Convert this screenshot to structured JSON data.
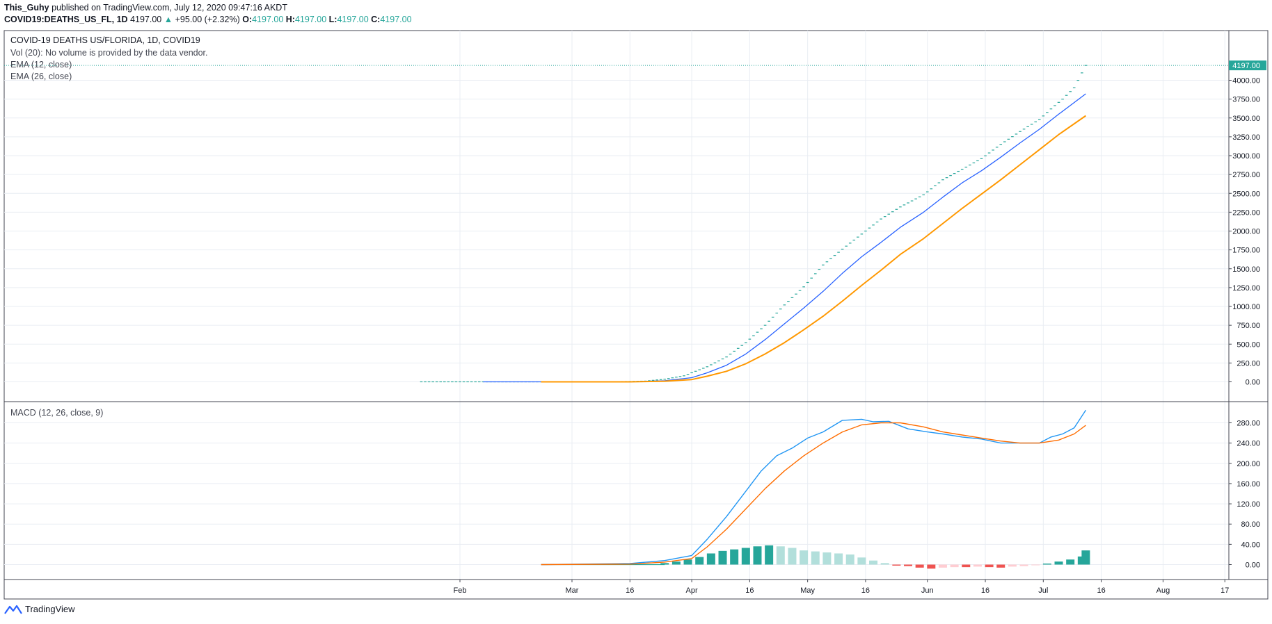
{
  "header": {
    "author": "This_Guhy",
    "published_text": "published on TradingView.com, July 12, 2020 09:47:16 AKDT",
    "symbol": "COVID19:DEATHS_US_FL, 1D",
    "last": "4197.00",
    "change": "+95.00 (+2.32%)",
    "o_label": "O:",
    "o_value": "4197.00",
    "h_label": "H:",
    "h_value": "4197.00",
    "l_label": "L:",
    "l_value": "4197.00",
    "c_label": "C:",
    "c_value": "4197.00"
  },
  "legend": {
    "title": "COVID-19 DEATHS US/FLORIDA, 1D, COVID19",
    "vol": "Vol (20): No volume is provided by the data vendor.",
    "ema12": "EMA (12, close)",
    "ema26": "EMA (26, close)",
    "macd": "MACD (12, 26, close, 9)"
  },
  "footer": {
    "brand": "TradingView",
    "logo_icon": "tradingview-logo-icon"
  },
  "colors": {
    "price_tick": "#26a69a",
    "ema12": "#2962ff",
    "ema26": "#ff9800",
    "macd_line": "#2196f3",
    "signal_line": "#ff6d00",
    "hist_up_strong": "#26a69a",
    "hist_up_weak": "#b2dfdb",
    "hist_down_strong": "#ef5350",
    "hist_down_weak": "#ffcdd2",
    "last_price_label": "#26a69a"
  },
  "chart_data": [
    {
      "type": "line",
      "title": "COVID-19 DEATHS US/FLORIDA, 1D, COVID19",
      "x_axis": {
        "ticks": [
          "Feb",
          "Mar",
          "16",
          "Apr",
          "16",
          "May",
          "16",
          "Jun",
          "16",
          "Jul",
          "16",
          "Aug",
          "17"
        ],
        "tick_dates": [
          "2020-02-01",
          "2020-03-01",
          "2020-03-16",
          "2020-04-01",
          "2020-04-16",
          "2020-05-01",
          "2020-05-16",
          "2020-06-01",
          "2020-06-16",
          "2020-07-01",
          "2020-07-16",
          "2020-08-01",
          "2020-08-17"
        ]
      },
      "y_axis": {
        "ylim": [
          -200,
          4300
        ],
        "ticks": [
          "0.00",
          "250.00",
          "500.00",
          "750.00",
          "1000.00",
          "1250.00",
          "1500.00",
          "1750.00",
          "2000.00",
          "2250.00",
          "2500.00",
          "2750.00",
          "3000.00",
          "3250.00",
          "3500.00",
          "3750.00",
          "4000.00"
        ],
        "tick_values": [
          0,
          250,
          500,
          750,
          1000,
          1250,
          1500,
          1750,
          2000,
          2250,
          2500,
          2750,
          3000,
          3250,
          3500,
          3750,
          4000
        ],
        "last_price_label": "4197.00",
        "last_price_value": 4197
      },
      "grid": true,
      "series": [
        {
          "kind": "price",
          "x": [
            "2020-01-22",
            "2020-02-07",
            "2020-03-01",
            "2020-03-10",
            "2020-03-16",
            "2020-03-20",
            "2020-03-25",
            "2020-03-30",
            "2020-04-01",
            "2020-04-05",
            "2020-04-10",
            "2020-04-15",
            "2020-04-20",
            "2020-04-25",
            "2020-04-30",
            "2020-05-05",
            "2020-05-10",
            "2020-05-15",
            "2020-05-20",
            "2020-05-25",
            "2020-05-31",
            "2020-06-05",
            "2020-06-10",
            "2020-06-15",
            "2020-06-20",
            "2020-06-25",
            "2020-06-30",
            "2020-07-03",
            "2020-07-06",
            "2020-07-09",
            "2020-07-12"
          ],
          "values": [
            0,
            0,
            0,
            2,
            5,
            10,
            35,
            80,
            120,
            200,
            330,
            520,
            750,
            1020,
            1260,
            1550,
            1760,
            1960,
            2160,
            2320,
            2480,
            2680,
            2820,
            2960,
            3150,
            3320,
            3480,
            3620,
            3750,
            3900,
            4197
          ]
        },
        {
          "name": "EMA (12, close)",
          "x": [
            "2020-02-07",
            "2020-03-01",
            "2020-03-16",
            "2020-03-25",
            "2020-04-01",
            "2020-04-05",
            "2020-04-10",
            "2020-04-15",
            "2020-04-20",
            "2020-04-25",
            "2020-04-30",
            "2020-05-05",
            "2020-05-10",
            "2020-05-15",
            "2020-05-20",
            "2020-05-25",
            "2020-05-31",
            "2020-06-05",
            "2020-06-10",
            "2020-06-15",
            "2020-06-20",
            "2020-06-25",
            "2020-06-30",
            "2020-07-05",
            "2020-07-12"
          ],
          "values": [
            0,
            0,
            0,
            15,
            55,
            120,
            220,
            370,
            560,
            770,
            980,
            1200,
            1440,
            1660,
            1850,
            2050,
            2250,
            2450,
            2640,
            2800,
            2980,
            3170,
            3350,
            3550,
            3820
          ]
        },
        {
          "name": "EMA (26, close)",
          "x": [
            "2020-02-22",
            "2020-03-01",
            "2020-03-16",
            "2020-03-25",
            "2020-04-01",
            "2020-04-05",
            "2020-04-10",
            "2020-04-15",
            "2020-04-20",
            "2020-04-25",
            "2020-04-30",
            "2020-05-05",
            "2020-05-10",
            "2020-05-15",
            "2020-05-20",
            "2020-05-25",
            "2020-05-31",
            "2020-06-05",
            "2020-06-10",
            "2020-06-15",
            "2020-06-20",
            "2020-06-25",
            "2020-06-30",
            "2020-07-05",
            "2020-07-12"
          ],
          "values": [
            0,
            0,
            0,
            8,
            30,
            75,
            140,
            240,
            370,
            520,
            690,
            870,
            1070,
            1280,
            1480,
            1690,
            1900,
            2100,
            2300,
            2490,
            2680,
            2880,
            3080,
            3280,
            3530
          ]
        }
      ]
    },
    {
      "type": "line",
      "title": "MACD (12, 26, close, 9)",
      "y_axis": {
        "ylim": [
          -20,
          320
        ],
        "ticks": [
          "0.00",
          "40.00",
          "80.00",
          "120.00",
          "160.00",
          "200.00",
          "240.00",
          "280.00"
        ],
        "tick_values": [
          0,
          40,
          80,
          120,
          160,
          200,
          240,
          280
        ]
      },
      "series": [
        {
          "name": "MACD",
          "x": [
            "2020-02-22",
            "2020-03-16",
            "2020-03-25",
            "2020-04-01",
            "2020-04-05",
            "2020-04-10",
            "2020-04-15",
            "2020-04-19",
            "2020-04-23",
            "2020-04-27",
            "2020-05-01",
            "2020-05-05",
            "2020-05-10",
            "2020-05-15",
            "2020-05-18",
            "2020-05-22",
            "2020-05-27",
            "2020-06-01",
            "2020-06-05",
            "2020-06-10",
            "2020-06-15",
            "2020-06-20",
            "2020-06-25",
            "2020-06-30",
            "2020-07-03",
            "2020-07-06",
            "2020-07-09",
            "2020-07-12"
          ],
          "values": [
            0,
            2,
            8,
            18,
            50,
            95,
            145,
            185,
            215,
            230,
            250,
            262,
            285,
            287,
            282,
            283,
            268,
            262,
            258,
            252,
            248,
            240,
            240,
            240,
            252,
            258,
            270,
            305
          ]
        },
        {
          "name": "Signal",
          "x": [
            "2020-02-22",
            "2020-03-16",
            "2020-03-25",
            "2020-04-01",
            "2020-04-05",
            "2020-04-10",
            "2020-04-15",
            "2020-04-20",
            "2020-04-25",
            "2020-04-30",
            "2020-05-05",
            "2020-05-10",
            "2020-05-15",
            "2020-05-20",
            "2020-05-25",
            "2020-05-31",
            "2020-06-05",
            "2020-06-10",
            "2020-06-15",
            "2020-06-20",
            "2020-06-25",
            "2020-06-30",
            "2020-07-05",
            "2020-07-09",
            "2020-07-12"
          ],
          "values": [
            0,
            1,
            5,
            12,
            35,
            70,
            110,
            150,
            185,
            215,
            240,
            262,
            276,
            280,
            280,
            272,
            262,
            256,
            250,
            244,
            240,
            240,
            246,
            258,
            275
          ]
        },
        {
          "name": "Histogram",
          "type": "bar",
          "x": [
            "2020-03-25",
            "2020-03-28",
            "2020-03-31",
            "2020-04-03",
            "2020-04-06",
            "2020-04-09",
            "2020-04-12",
            "2020-04-15",
            "2020-04-18",
            "2020-04-21",
            "2020-04-24",
            "2020-04-27",
            "2020-04-30",
            "2020-05-03",
            "2020-05-06",
            "2020-05-09",
            "2020-05-12",
            "2020-05-15",
            "2020-05-18",
            "2020-05-21",
            "2020-05-24",
            "2020-05-27",
            "2020-05-30",
            "2020-06-02",
            "2020-06-05",
            "2020-06-08",
            "2020-06-11",
            "2020-06-14",
            "2020-06-17",
            "2020-06-20",
            "2020-06-23",
            "2020-06-26",
            "2020-06-29",
            "2020-07-02",
            "2020-07-05",
            "2020-07-08",
            "2020-07-11",
            "2020-07-12"
          ],
          "values": [
            3,
            6,
            10,
            15,
            22,
            27,
            30,
            33,
            36,
            38,
            36,
            33,
            28,
            26,
            24,
            22,
            20,
            14,
            8,
            3,
            -2,
            -3,
            -6,
            -8,
            -6,
            -5,
            -5,
            -4,
            -5,
            -6,
            -4,
            -3,
            -1,
            2,
            6,
            10,
            16,
            28
          ]
        }
      ]
    }
  ]
}
